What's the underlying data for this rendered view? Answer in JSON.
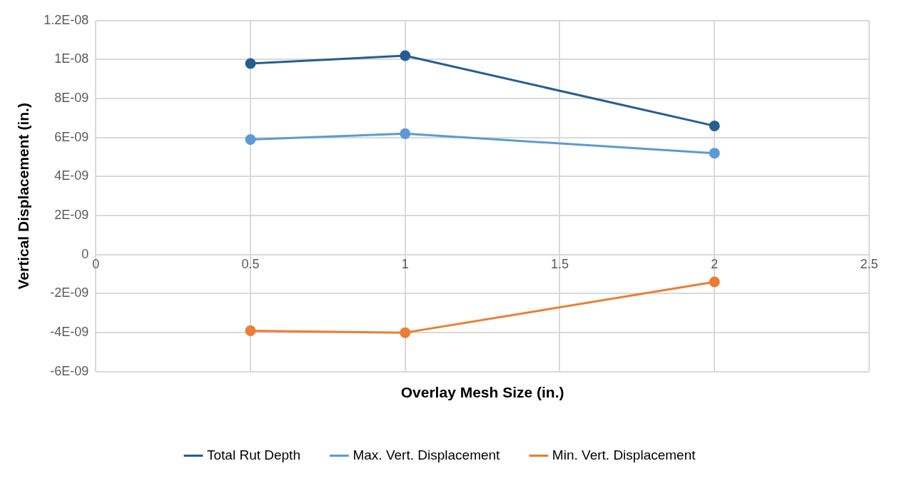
{
  "chart_data": {
    "type": "line",
    "xlabel": "Overlay Mesh Size (in.)",
    "ylabel": "Vertical Displacement (in.)",
    "x": [
      0.5,
      1,
      2
    ],
    "series": [
      {
        "name": "Total Rut Depth",
        "color": "#255e91",
        "values": [
          9.8e-09,
          1.02e-08,
          6.6e-09
        ]
      },
      {
        "name": "Max. Vert. Displacement",
        "color": "#5b9bd5",
        "values": [
          5.9e-09,
          6.2e-09,
          5.2e-09
        ]
      },
      {
        "name": "Min. Vert. Displacement",
        "color": "#ed7d31",
        "values": [
          -3.9e-09,
          -4e-09,
          -1.4e-09
        ]
      }
    ],
    "xlim": [
      0,
      2.5
    ],
    "xticks": [
      0,
      0.5,
      1,
      1.5,
      2,
      2.5
    ],
    "ylim": [
      -6e-09,
      1.2e-08
    ],
    "yticks": [
      {
        "value": -6e-09,
        "label": "-6E-09"
      },
      {
        "value": -4e-09,
        "label": "-4E-09"
      },
      {
        "value": -2e-09,
        "label": "-2E-09"
      },
      {
        "value": 0,
        "label": "0"
      },
      {
        "value": 2e-09,
        "label": "2E-09"
      },
      {
        "value": 4e-09,
        "label": "4E-09"
      },
      {
        "value": 6e-09,
        "label": "6E-09"
      },
      {
        "value": 8e-09,
        "label": "8E-09"
      },
      {
        "value": 1e-08,
        "label": "1E-08"
      },
      {
        "value": 1.2e-08,
        "label": "1.2E-08"
      }
    ],
    "grid": true,
    "legend": "bottom",
    "marker": "circle",
    "line_style": "solid"
  }
}
